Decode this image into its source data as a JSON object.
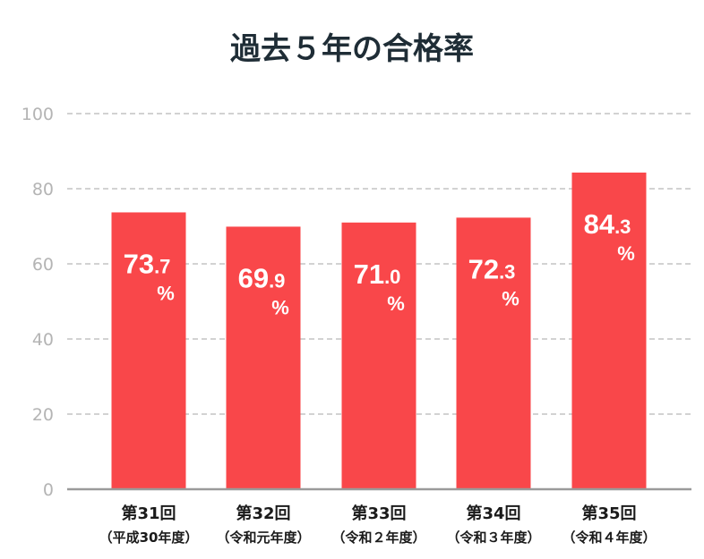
{
  "chart_data": {
    "type": "bar",
    "title": "過去５年の合格率",
    "categories": [
      "第31回",
      "第32回",
      "第33回",
      "第34回",
      "第35回"
    ],
    "category_sublabels": [
      "（平成30年度）",
      "（令和元年度）",
      "（令和２年度）",
      "（令和３年度）",
      "（令和４年度）"
    ],
    "values": [
      73.7,
      69.9,
      71.0,
      72.3,
      84.3
    ],
    "value_labels": [
      {
        "main": "73",
        "decimal": ".7",
        "unit": "%"
      },
      {
        "main": "69",
        "decimal": ".9",
        "unit": "%"
      },
      {
        "main": "71",
        "decimal": ".0",
        "unit": "%"
      },
      {
        "main": "72",
        "decimal": ".3",
        "unit": "%"
      },
      {
        "main": "84",
        "decimal": ".3",
        "unit": "%"
      }
    ],
    "yticks": [
      "0",
      "20",
      "40",
      "60",
      "80",
      "100"
    ],
    "ylim": [
      0,
      100
    ],
    "xlabel": "",
    "ylabel": "",
    "grid": true,
    "bar_color": "#f9474a",
    "grid_color": "#b8b8b8",
    "axis_color": "#9a9a9a"
  }
}
